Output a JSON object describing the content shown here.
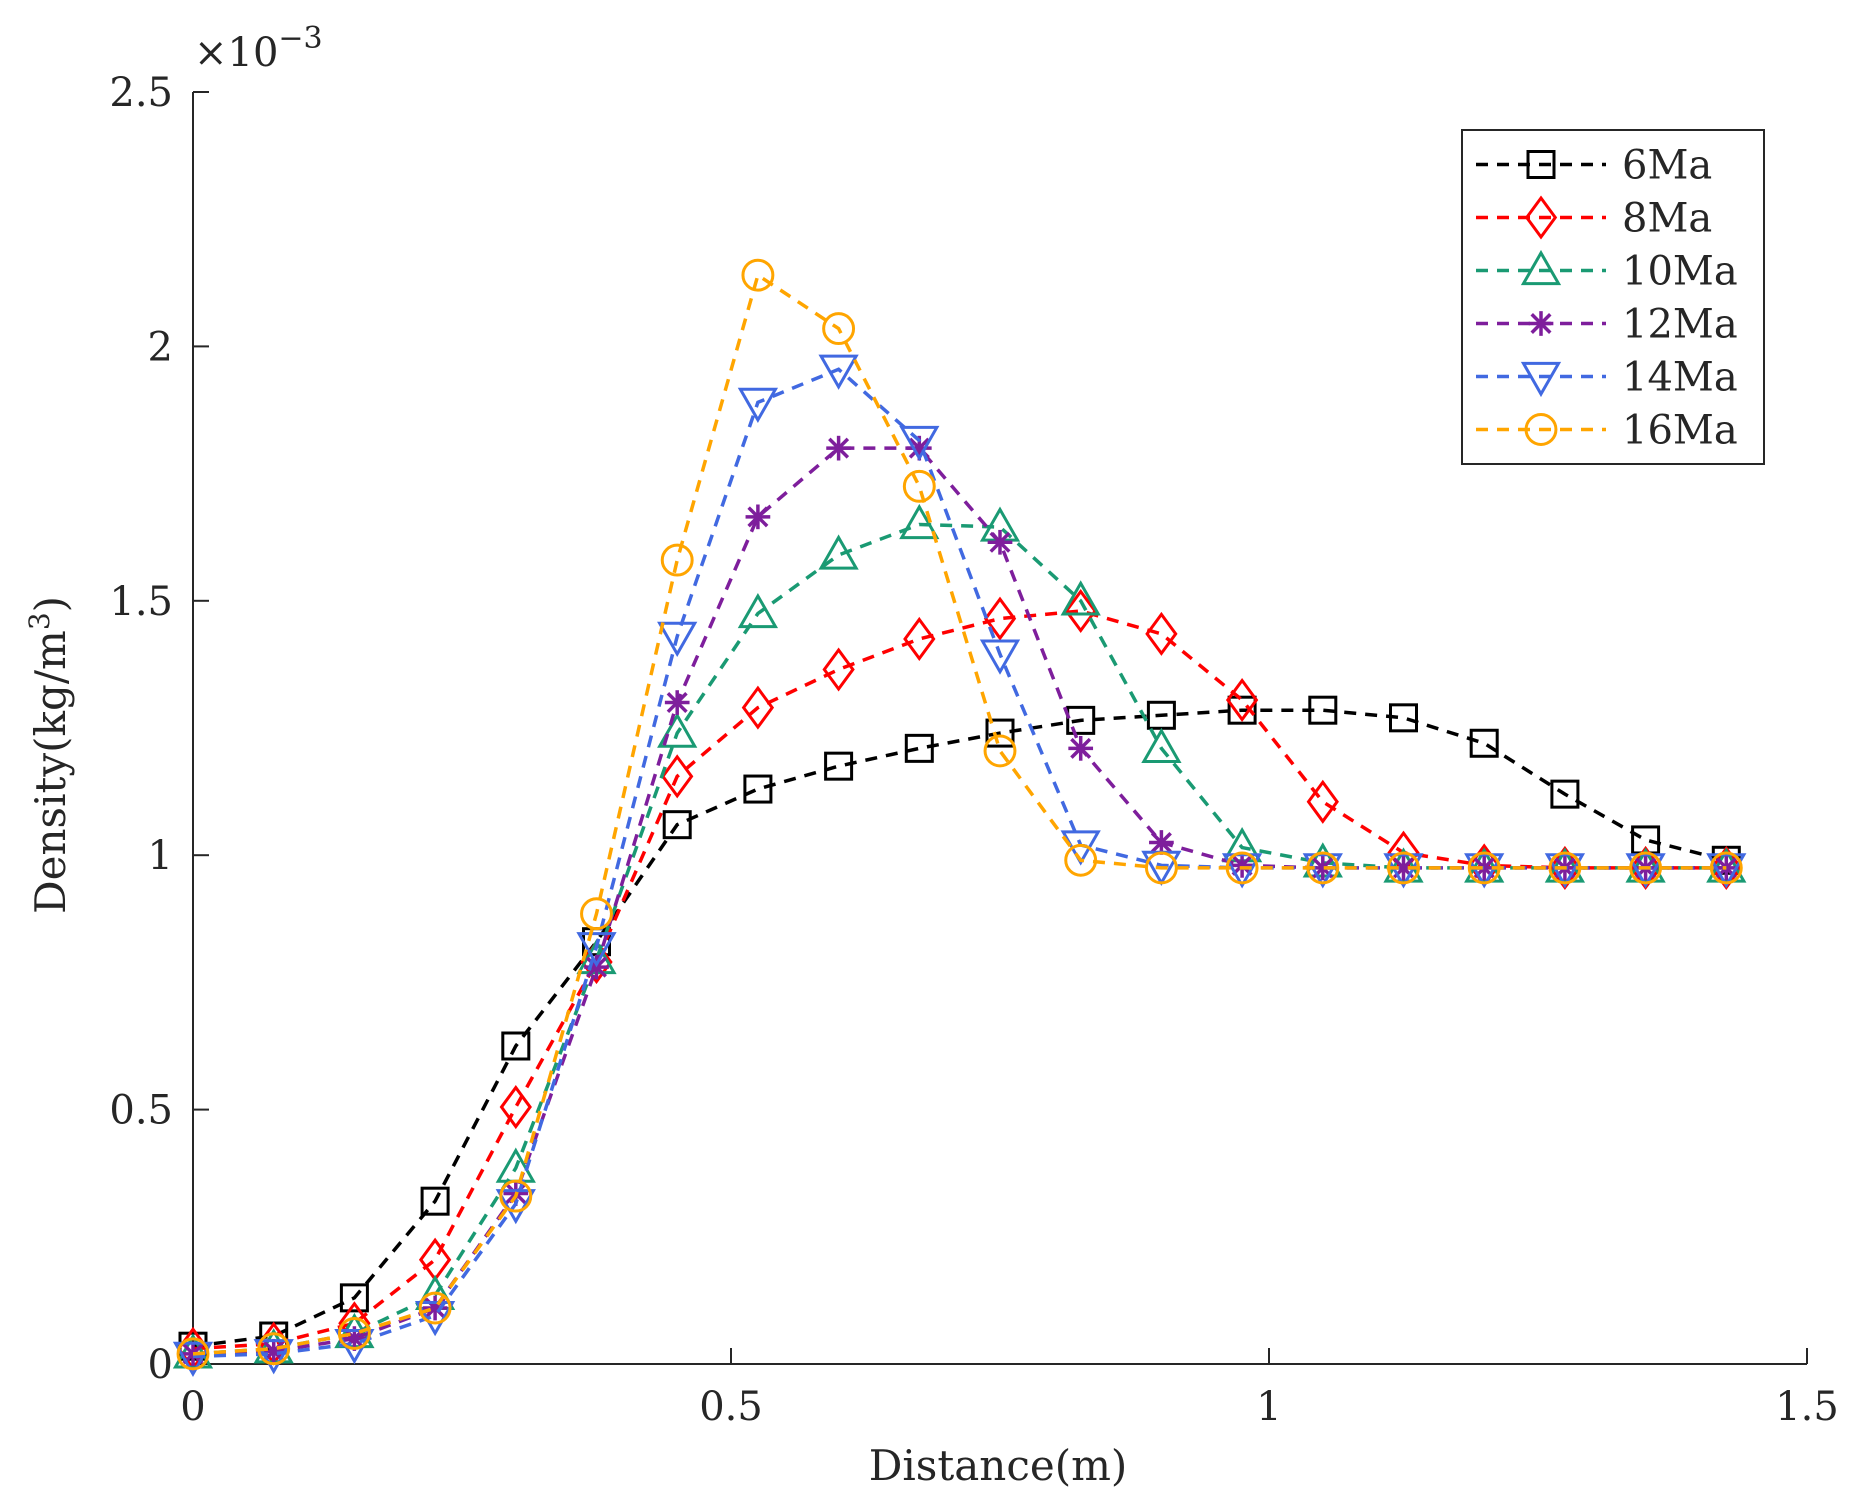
{
  "chart_data": {
    "type": "line",
    "title": "",
    "xlabel": "Distance(m)",
    "ylabel": "Density(kg/m",
    "ylabel_superscript": "3",
    "ylabel_suffix": ")",
    "y_exponent_label": "×10",
    "y_exponent_power": "−3",
    "xlim": [
      0,
      1.5
    ],
    "ylim": [
      0,
      2.5
    ],
    "x_ticks": [
      0,
      0.5,
      1,
      1.5
    ],
    "x_tick_labels": [
      "0",
      "0.5",
      "1",
      "1.5"
    ],
    "y_ticks": [
      0,
      0.5,
      1,
      1.5,
      2,
      2.5
    ],
    "y_tick_labels": [
      "0",
      "0.5",
      "1",
      "1.5",
      "2",
      "2.5"
    ],
    "grid": false,
    "legend_position": "top-right",
    "x": [
      0,
      0.075,
      0.15,
      0.225,
      0.3,
      0.375,
      0.45,
      0.525,
      0.6,
      0.675,
      0.75,
      0.825,
      0.9,
      0.975,
      1.05,
      1.125,
      1.2,
      1.275,
      1.35,
      1.425
    ],
    "series": [
      {
        "name": "6Ma",
        "color": "#000000",
        "marker": "square",
        "values": [
          0.035,
          0.055,
          0.13,
          0.32,
          0.625,
          0.83,
          1.06,
          1.13,
          1.175,
          1.21,
          1.24,
          1.265,
          1.275,
          1.285,
          1.285,
          1.27,
          1.22,
          1.12,
          1.03,
          0.99
        ]
      },
      {
        "name": "8Ma",
        "color": "#ff0000",
        "marker": "diamond",
        "values": [
          0.03,
          0.04,
          0.08,
          0.205,
          0.505,
          0.79,
          1.155,
          1.29,
          1.365,
          1.425,
          1.465,
          1.48,
          1.435,
          1.305,
          1.105,
          1.005,
          0.98,
          0.975,
          0.975,
          0.975
        ]
      },
      {
        "name": "10Ma",
        "color": "#1a9a73",
        "marker": "triangle-up",
        "values": [
          0.02,
          0.03,
          0.06,
          0.135,
          0.385,
          0.795,
          1.24,
          1.475,
          1.59,
          1.65,
          1.645,
          1.5,
          1.21,
          1.015,
          0.985,
          0.975,
          0.975,
          0.975,
          0.975,
          0.975
        ]
      },
      {
        "name": "12Ma",
        "color": "#7e1e9c",
        "marker": "asterisk",
        "values": [
          0.02,
          0.025,
          0.05,
          0.11,
          0.335,
          0.78,
          1.3,
          1.665,
          1.8,
          1.8,
          1.615,
          1.21,
          1.025,
          0.98,
          0.975,
          0.975,
          0.975,
          0.975,
          0.975,
          0.975
        ]
      },
      {
        "name": "14Ma",
        "color": "#4169e1",
        "marker": "triangle-down",
        "values": [
          0.015,
          0.02,
          0.04,
          0.095,
          0.315,
          0.82,
          1.43,
          1.89,
          1.955,
          1.815,
          1.395,
          1.02,
          0.98,
          0.975,
          0.975,
          0.975,
          0.975,
          0.975,
          0.975,
          0.975
        ]
      },
      {
        "name": "16Ma",
        "color": "#ffa500",
        "marker": "circle",
        "values": [
          0.02,
          0.03,
          0.06,
          0.11,
          0.33,
          0.885,
          1.58,
          2.14,
          2.035,
          1.725,
          1.205,
          0.99,
          0.975,
          0.975,
          0.975,
          0.975,
          0.975,
          0.975,
          0.975,
          0.975
        ]
      }
    ]
  }
}
